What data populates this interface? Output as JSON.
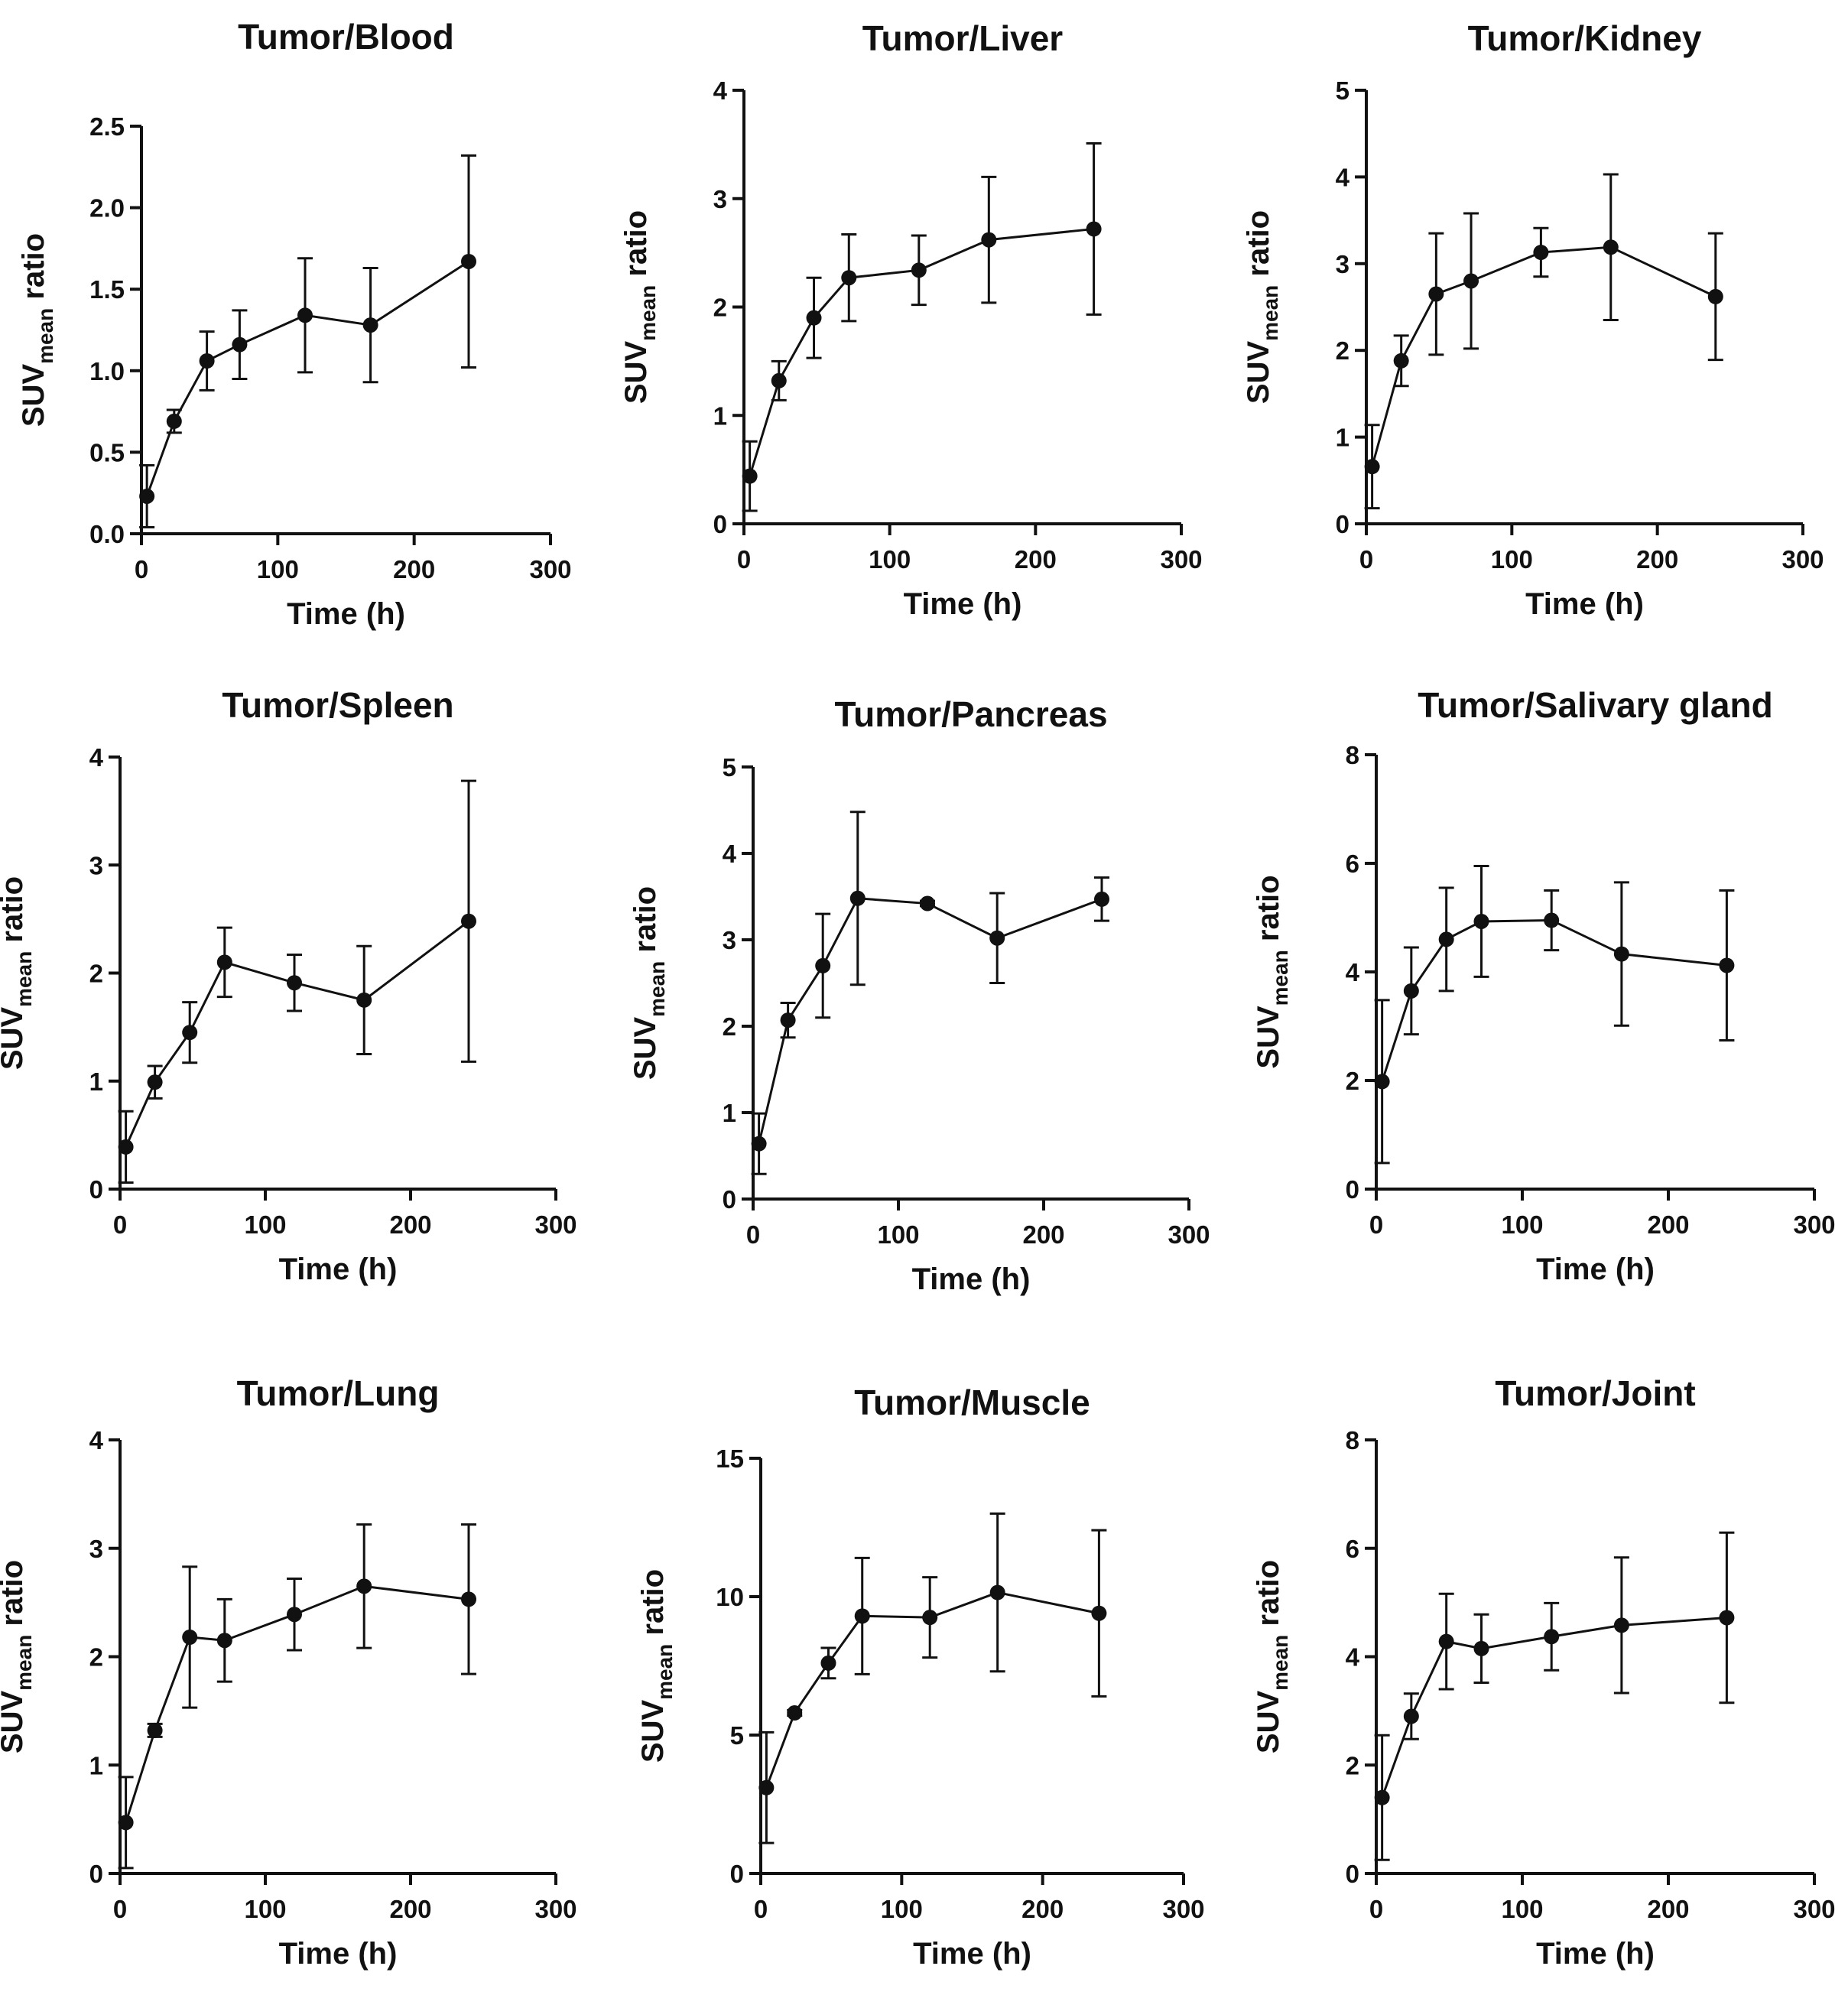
{
  "chart_data": [
    {
      "type": "line",
      "title": "Tumor/Blood",
      "xlabel": "Time (h)",
      "ylabel": {
        "main": "SUV",
        "sub": "mean",
        "suffix": "ratio"
      },
      "xlim": [
        0,
        300
      ],
      "xticks": [
        "0",
        "100",
        "200",
        "300"
      ],
      "ylim": [
        0,
        2.5
      ],
      "yticks": [
        "0.0",
        "0.5",
        "1.0",
        "1.5",
        "2.0",
        "2.5"
      ],
      "x": [
        4,
        24,
        48,
        72,
        120,
        168,
        240
      ],
      "values": [
        0.23,
        0.69,
        1.06,
        1.16,
        1.34,
        1.28,
        1.67
      ],
      "errors": [
        0.19,
        0.07,
        0.18,
        0.21,
        0.35,
        0.35,
        0.65
      ]
    },
    {
      "type": "line",
      "title": "Tumor/Liver",
      "xlabel": "Time (h)",
      "ylabel": {
        "main": "SUV",
        "sub": "mean",
        "suffix": "ratio"
      },
      "xlim": [
        0,
        300
      ],
      "xticks": [
        "0",
        "100",
        "200",
        "300"
      ],
      "ylim": [
        0,
        4
      ],
      "yticks": [
        "0",
        "1",
        "2",
        "3",
        "4"
      ],
      "x": [
        4,
        24,
        48,
        72,
        120,
        168,
        240
      ],
      "values": [
        0.44,
        1.32,
        1.9,
        2.27,
        2.34,
        2.62,
        2.72
      ],
      "errors": [
        0.32,
        0.18,
        0.37,
        0.4,
        0.32,
        0.58,
        0.79
      ]
    },
    {
      "type": "line",
      "title": "Tumor/Kidney",
      "xlabel": "Time (h)",
      "ylabel": {
        "main": "SUV",
        "sub": "mean",
        "suffix": "ratio"
      },
      "xlim": [
        0,
        300
      ],
      "xticks": [
        "0",
        "100",
        "200",
        "300"
      ],
      "ylim": [
        0,
        5
      ],
      "yticks": [
        "0",
        "1",
        "2",
        "3",
        "4",
        "5"
      ],
      "x": [
        4,
        24,
        48,
        72,
        120,
        168,
        240
      ],
      "values": [
        0.66,
        1.88,
        2.65,
        2.8,
        3.13,
        3.19,
        2.62
      ],
      "errors": [
        0.48,
        0.29,
        0.7,
        0.78,
        0.28,
        0.84,
        0.73
      ]
    },
    {
      "type": "line",
      "title": "Tumor/Spleen",
      "xlabel": "Time (h)",
      "ylabel": {
        "main": "SUV",
        "sub": "mean",
        "suffix": "ratio"
      },
      "xlim": [
        0,
        300
      ],
      "xticks": [
        "0",
        "100",
        "200",
        "300"
      ],
      "ylim": [
        0,
        4
      ],
      "yticks": [
        "0",
        "1",
        "2",
        "3",
        "4"
      ],
      "x": [
        4,
        24,
        48,
        72,
        120,
        168,
        240
      ],
      "values": [
        0.39,
        0.99,
        1.45,
        2.1,
        1.91,
        1.75,
        2.48
      ],
      "errors": [
        0.33,
        0.15,
        0.28,
        0.32,
        0.26,
        0.5,
        1.3
      ]
    },
    {
      "type": "line",
      "title": "Tumor/Pancreas",
      "xlabel": "Time (h)",
      "ylabel": {
        "main": "SUV",
        "sub": "mean",
        "suffix": "ratio"
      },
      "xlim": [
        0,
        300
      ],
      "xticks": [
        "0",
        "100",
        "200",
        "300"
      ],
      "ylim": [
        0,
        5
      ],
      "yticks": [
        "0",
        "1",
        "2",
        "3",
        "4",
        "5"
      ],
      "x": [
        4,
        24,
        48,
        72,
        120,
        168,
        240
      ],
      "values": [
        0.64,
        2.07,
        2.7,
        3.48,
        3.42,
        3.02,
        3.47
      ],
      "errors": [
        0.35,
        0.2,
        0.6,
        1.0,
        0.03,
        0.52,
        0.25
      ]
    },
    {
      "type": "line",
      "title": "Tumor/Salivary gland",
      "xlabel": "Time (h)",
      "ylabel": {
        "main": "SUV",
        "sub": "mean",
        "suffix": "ratio"
      },
      "xlim": [
        0,
        300
      ],
      "xticks": [
        "0",
        "100",
        "200",
        "300"
      ],
      "ylim": [
        0,
        8
      ],
      "yticks": [
        "0",
        "2",
        "4",
        "6",
        "8"
      ],
      "x": [
        4,
        24,
        48,
        72,
        120,
        168,
        240
      ],
      "values": [
        1.98,
        3.65,
        4.6,
        4.93,
        4.95,
        4.33,
        4.12
      ],
      "errors": [
        1.5,
        0.8,
        0.95,
        1.02,
        0.55,
        1.32,
        1.38
      ]
    },
    {
      "type": "line",
      "title": "Tumor/Lung",
      "xlabel": "Time (h)",
      "ylabel": {
        "main": "SUV",
        "sub": "mean",
        "suffix": "ratio"
      },
      "xlim": [
        0,
        300
      ],
      "xticks": [
        "0",
        "100",
        "200",
        "300"
      ],
      "ylim": [
        0,
        4
      ],
      "yticks": [
        "0",
        "1",
        "2",
        "3",
        "4"
      ],
      "x": [
        4,
        24,
        48,
        72,
        120,
        168,
        240
      ],
      "values": [
        0.47,
        1.32,
        2.18,
        2.15,
        2.39,
        2.65,
        2.53
      ],
      "errors": [
        0.42,
        0.06,
        0.65,
        0.38,
        0.33,
        0.57,
        0.69
      ]
    },
    {
      "type": "line",
      "title": "Tumor/Muscle",
      "xlabel": "Time (h)",
      "ylabel": {
        "main": "SUV",
        "sub": "mean",
        "suffix": "ratio"
      },
      "xlim": [
        0,
        300
      ],
      "xticks": [
        "0",
        "100",
        "200",
        "300"
      ],
      "ylim": [
        0,
        15
      ],
      "yticks": [
        "0",
        "5",
        "10",
        "15"
      ],
      "x": [
        4,
        24,
        48,
        72,
        120,
        168,
        240
      ],
      "values": [
        3.1,
        5.8,
        7.6,
        9.3,
        9.25,
        10.15,
        9.4
      ],
      "errors": [
        2.0,
        0.1,
        0.55,
        2.1,
        1.45,
        2.85,
        3.0
      ]
    },
    {
      "type": "line",
      "title": "Tumor/Joint",
      "xlabel": "Time (h)",
      "ylabel": {
        "main": "SUV",
        "sub": "mean",
        "suffix": "ratio"
      },
      "xlim": [
        0,
        300
      ],
      "xticks": [
        "0",
        "100",
        "200",
        "300"
      ],
      "ylim": [
        0,
        8
      ],
      "yticks": [
        "0",
        "2",
        "4",
        "6",
        "8"
      ],
      "x": [
        4,
        24,
        48,
        72,
        120,
        168,
        240
      ],
      "values": [
        1.4,
        2.9,
        4.28,
        4.15,
        4.37,
        4.58,
        4.72
      ],
      "errors": [
        1.15,
        0.42,
        0.88,
        0.63,
        0.62,
        1.25,
        1.57
      ]
    }
  ]
}
